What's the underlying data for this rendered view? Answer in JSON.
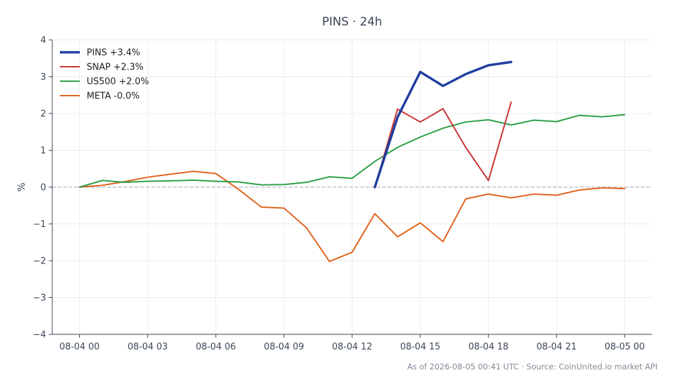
{
  "chart_data": {
    "type": "line",
    "title": "PINS · 24h",
    "ylabel": "%",
    "xlabel": "",
    "ylim": [
      -4,
      4
    ],
    "yticks": [
      -4,
      -3,
      -2,
      -1,
      0,
      1,
      2,
      3,
      4
    ],
    "ytick_labels": [
      "−4",
      "−3",
      "−2",
      "−1",
      "0",
      "1",
      "2",
      "3",
      "4"
    ],
    "xlim": [
      -1.2,
      25.2
    ],
    "xticks": [
      0,
      3,
      6,
      9,
      12,
      15,
      18,
      21,
      24
    ],
    "xtick_labels": [
      "08-04 00",
      "08-04 03",
      "08-04 06",
      "08-04 09",
      "08-04 12",
      "08-04 15",
      "08-04 18",
      "08-04 21",
      "08-05 00"
    ],
    "grid": true,
    "zero_line": true,
    "legend": "top-left",
    "series": [
      {
        "name": "PINS +3.4%",
        "color": "#1f3fa0",
        "width": 3.5,
        "x": [
          13,
          14,
          15,
          16,
          17,
          18,
          19
        ],
        "values": [
          0.0,
          1.9,
          3.13,
          2.75,
          3.07,
          3.31,
          3.4
        ]
      },
      {
        "name": "SNAP +2.3%",
        "color": "#c83232",
        "width": 2,
        "x": [
          13,
          14,
          15,
          16,
          17,
          18,
          19
        ],
        "values": [
          0.0,
          2.12,
          1.77,
          2.13,
          1.08,
          0.18,
          2.31
        ]
      },
      {
        "name": "US500 +2.0%",
        "color": "#2ca048",
        "width": 2,
        "x": [
          0,
          1,
          2,
          3,
          4,
          5,
          6,
          7,
          8,
          9,
          10,
          11,
          12,
          13,
          14,
          15,
          16,
          17,
          18,
          19,
          20,
          21,
          22,
          23,
          24
        ],
        "values": [
          0.0,
          0.18,
          0.13,
          0.16,
          0.17,
          0.19,
          0.16,
          0.14,
          0.06,
          0.07,
          0.13,
          0.28,
          0.24,
          0.7,
          1.08,
          1.36,
          1.6,
          1.77,
          1.83,
          1.69,
          1.82,
          1.78,
          1.95,
          1.91,
          1.97
        ]
      },
      {
        "name": "META -0.0%",
        "color": "#e0641e",
        "width": 2,
        "x": [
          0,
          1,
          2,
          3,
          4,
          5,
          6,
          7,
          8,
          9,
          10,
          11,
          12,
          13,
          14,
          15,
          16,
          17,
          18,
          19,
          20,
          21,
          22,
          23,
          24
        ],
        "values": [
          0.0,
          0.05,
          0.15,
          0.27,
          0.35,
          0.43,
          0.37,
          -0.06,
          -0.54,
          -0.57,
          -1.11,
          -2.02,
          -1.77,
          -0.72,
          -1.35,
          -0.97,
          -1.48,
          -0.32,
          -0.19,
          -0.29,
          -0.19,
          -0.22,
          -0.08,
          -0.02,
          -0.04
        ]
      }
    ]
  },
  "footer": "As of 2026-08-05 00:41 UTC · Source: CoinUnited.io market API"
}
